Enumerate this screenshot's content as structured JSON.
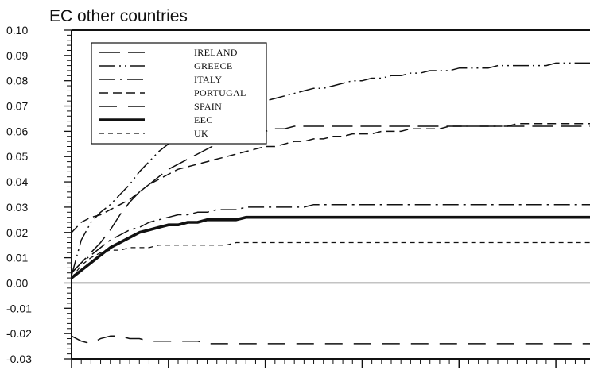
{
  "chart_data": {
    "type": "line",
    "title": "EC other countries",
    "xlabel": "",
    "ylabel": "",
    "x": [
      0,
      1,
      2,
      3,
      4,
      5,
      6,
      7,
      8,
      9,
      10,
      11,
      12,
      13,
      14,
      15,
      16,
      17,
      18,
      19,
      20,
      21,
      22,
      23,
      24,
      25,
      26,
      27,
      28,
      29,
      30,
      31,
      32,
      33,
      34,
      35,
      36,
      37,
      38,
      39,
      40,
      41,
      42,
      43,
      44,
      45,
      46,
      47,
      48,
      49,
      50,
      51,
      52,
      53,
      54,
      55
    ],
    "xlim": [
      0,
      55
    ],
    "ylim": [
      -0.03,
      0.1
    ],
    "yticks": [
      "0.10",
      "0.09",
      "0.08",
      "0.07",
      "0.06",
      "0.05",
      "0.04",
      "0.03",
      "0.02",
      "0.01",
      "0.00",
      "-0.01",
      "-0.02",
      "-0.03"
    ],
    "legend_position": "top-left",
    "grid": false,
    "series": [
      {
        "name": "IRELAND",
        "dash": "long-dash",
        "values": [
          0.004,
          0.008,
          0.012,
          0.016,
          0.021,
          0.027,
          0.032,
          0.036,
          0.039,
          0.042,
          0.045,
          0.047,
          0.049,
          0.051,
          0.053,
          0.055,
          0.056,
          0.057,
          0.058,
          0.059,
          0.06,
          0.061,
          0.061,
          0.062,
          0.062,
          0.062,
          0.062,
          0.062,
          0.062,
          0.062,
          0.062,
          0.062,
          0.062,
          0.062,
          0.062,
          0.062,
          0.062,
          0.062,
          0.062,
          0.062,
          0.062,
          0.062,
          0.062,
          0.062,
          0.062,
          0.062,
          0.062,
          0.062,
          0.062,
          0.062,
          0.062,
          0.062,
          0.062,
          0.062,
          0.062,
          0.062
        ]
      },
      {
        "name": "GREECE",
        "dash": "dash-dot-dot",
        "values": [
          0.003,
          0.017,
          0.024,
          0.028,
          0.031,
          0.035,
          0.039,
          0.044,
          0.048,
          0.052,
          0.055,
          0.058,
          0.061,
          0.063,
          0.065,
          0.066,
          0.068,
          0.069,
          0.07,
          0.071,
          0.072,
          0.073,
          0.074,
          0.075,
          0.076,
          0.077,
          0.077,
          0.078,
          0.079,
          0.08,
          0.08,
          0.081,
          0.081,
          0.082,
          0.082,
          0.083,
          0.083,
          0.084,
          0.084,
          0.084,
          0.085,
          0.085,
          0.085,
          0.085,
          0.086,
          0.086,
          0.086,
          0.086,
          0.086,
          0.086,
          0.087,
          0.087,
          0.087,
          0.087,
          0.087,
          0.087
        ]
      },
      {
        "name": "ITALY",
        "dash": "dash-dot",
        "values": [
          0.004,
          0.008,
          0.011,
          0.014,
          0.017,
          0.019,
          0.021,
          0.022,
          0.024,
          0.025,
          0.026,
          0.027,
          0.027,
          0.028,
          0.028,
          0.029,
          0.029,
          0.029,
          0.03,
          0.03,
          0.03,
          0.03,
          0.03,
          0.03,
          0.03,
          0.031,
          0.031,
          0.031,
          0.031,
          0.031,
          0.031,
          0.031,
          0.031,
          0.031,
          0.031,
          0.031,
          0.031,
          0.031,
          0.031,
          0.031,
          0.031,
          0.031,
          0.031,
          0.031,
          0.031,
          0.031,
          0.031,
          0.031,
          0.031,
          0.031,
          0.031,
          0.031,
          0.031,
          0.031,
          0.031,
          0.031
        ]
      },
      {
        "name": "PORTUGAL",
        "dash": "dash",
        "values": [
          0.02,
          0.024,
          0.026,
          0.027,
          0.029,
          0.031,
          0.033,
          0.036,
          0.039,
          0.041,
          0.043,
          0.045,
          0.046,
          0.047,
          0.048,
          0.049,
          0.05,
          0.051,
          0.052,
          0.053,
          0.054,
          0.054,
          0.055,
          0.056,
          0.056,
          0.057,
          0.057,
          0.058,
          0.058,
          0.059,
          0.059,
          0.059,
          0.06,
          0.06,
          0.06,
          0.061,
          0.061,
          0.061,
          0.061,
          0.062,
          0.062,
          0.062,
          0.062,
          0.062,
          0.062,
          0.062,
          0.063,
          0.063,
          0.063,
          0.063,
          0.063,
          0.063,
          0.063,
          0.063,
          0.063,
          0.063
        ]
      },
      {
        "name": "SPAIN",
        "dash": "long-dash-gap",
        "values": [
          -0.021,
          -0.023,
          -0.024,
          -0.022,
          -0.021,
          -0.021,
          -0.022,
          -0.022,
          -0.023,
          -0.023,
          -0.023,
          -0.023,
          -0.023,
          -0.023,
          -0.024,
          -0.024,
          -0.024,
          -0.024,
          -0.024,
          -0.024,
          -0.024,
          -0.024,
          -0.024,
          -0.024,
          -0.024,
          -0.024,
          -0.024,
          -0.024,
          -0.024,
          -0.024,
          -0.024,
          -0.024,
          -0.024,
          -0.024,
          -0.024,
          -0.024,
          -0.024,
          -0.024,
          -0.024,
          -0.024,
          -0.024,
          -0.024,
          -0.024,
          -0.024,
          -0.024,
          -0.024,
          -0.024,
          -0.024,
          -0.024,
          -0.024,
          -0.024,
          -0.024,
          -0.024,
          -0.024,
          -0.024,
          -0.024
        ]
      },
      {
        "name": "EEC",
        "dash": "solid-thick",
        "values": [
          0.002,
          0.005,
          0.008,
          0.011,
          0.014,
          0.016,
          0.018,
          0.02,
          0.021,
          0.022,
          0.023,
          0.023,
          0.024,
          0.024,
          0.025,
          0.025,
          0.025,
          0.025,
          0.026,
          0.026,
          0.026,
          0.026,
          0.026,
          0.026,
          0.026,
          0.026,
          0.026,
          0.026,
          0.026,
          0.026,
          0.026,
          0.026,
          0.026,
          0.026,
          0.026,
          0.026,
          0.026,
          0.026,
          0.026,
          0.026,
          0.026,
          0.026,
          0.026,
          0.026,
          0.026,
          0.026,
          0.026,
          0.026,
          0.026,
          0.026,
          0.026,
          0.026,
          0.026,
          0.026,
          0.026,
          0.026
        ]
      },
      {
        "name": "UK",
        "dash": "short-dash",
        "values": [
          0.002,
          0.007,
          0.01,
          0.012,
          0.013,
          0.013,
          0.014,
          0.014,
          0.014,
          0.015,
          0.015,
          0.015,
          0.015,
          0.015,
          0.015,
          0.015,
          0.015,
          0.016,
          0.016,
          0.016,
          0.016,
          0.016,
          0.016,
          0.016,
          0.016,
          0.016,
          0.016,
          0.016,
          0.016,
          0.016,
          0.016,
          0.016,
          0.016,
          0.016,
          0.016,
          0.016,
          0.016,
          0.016,
          0.016,
          0.016,
          0.016,
          0.016,
          0.016,
          0.016,
          0.016,
          0.016,
          0.016,
          0.016,
          0.016,
          0.016,
          0.016,
          0.016,
          0.016,
          0.016,
          0.016,
          0.016
        ]
      }
    ]
  }
}
